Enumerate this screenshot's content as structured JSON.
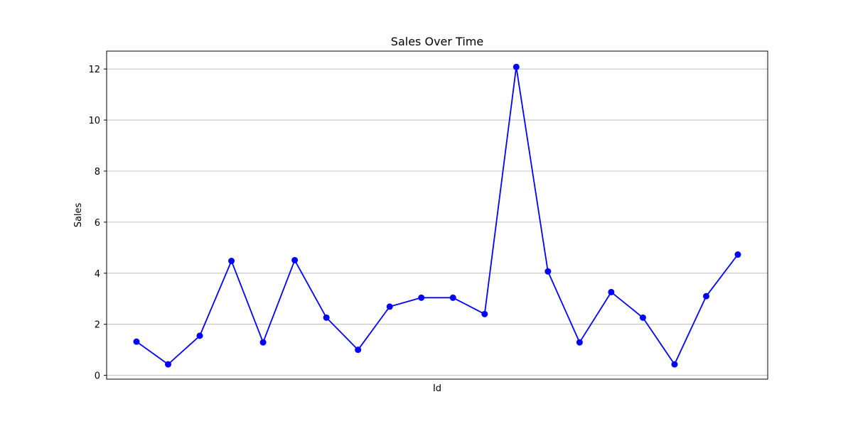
{
  "chart_data": {
    "type": "line",
    "title": "Sales Over Time",
    "xlabel": "Id",
    "ylabel": "Sales",
    "x_tick_labels_shown": false,
    "y": [
      1.32,
      0.43,
      1.55,
      4.48,
      1.29,
      4.51,
      2.26,
      1.0,
      2.69,
      3.04,
      3.04,
      2.4,
      12.08,
      4.07,
      1.29,
      3.26,
      2.26,
      0.43,
      3.1,
      4.73
    ],
    "ylim": [
      -0.15,
      12.7
    ],
    "yticks": [
      0,
      2,
      4,
      6,
      8,
      10,
      12
    ],
    "grid": "horizontal",
    "series_color": "#0000ff",
    "marker": "circle",
    "gridline_color": "#b0b0b0"
  }
}
